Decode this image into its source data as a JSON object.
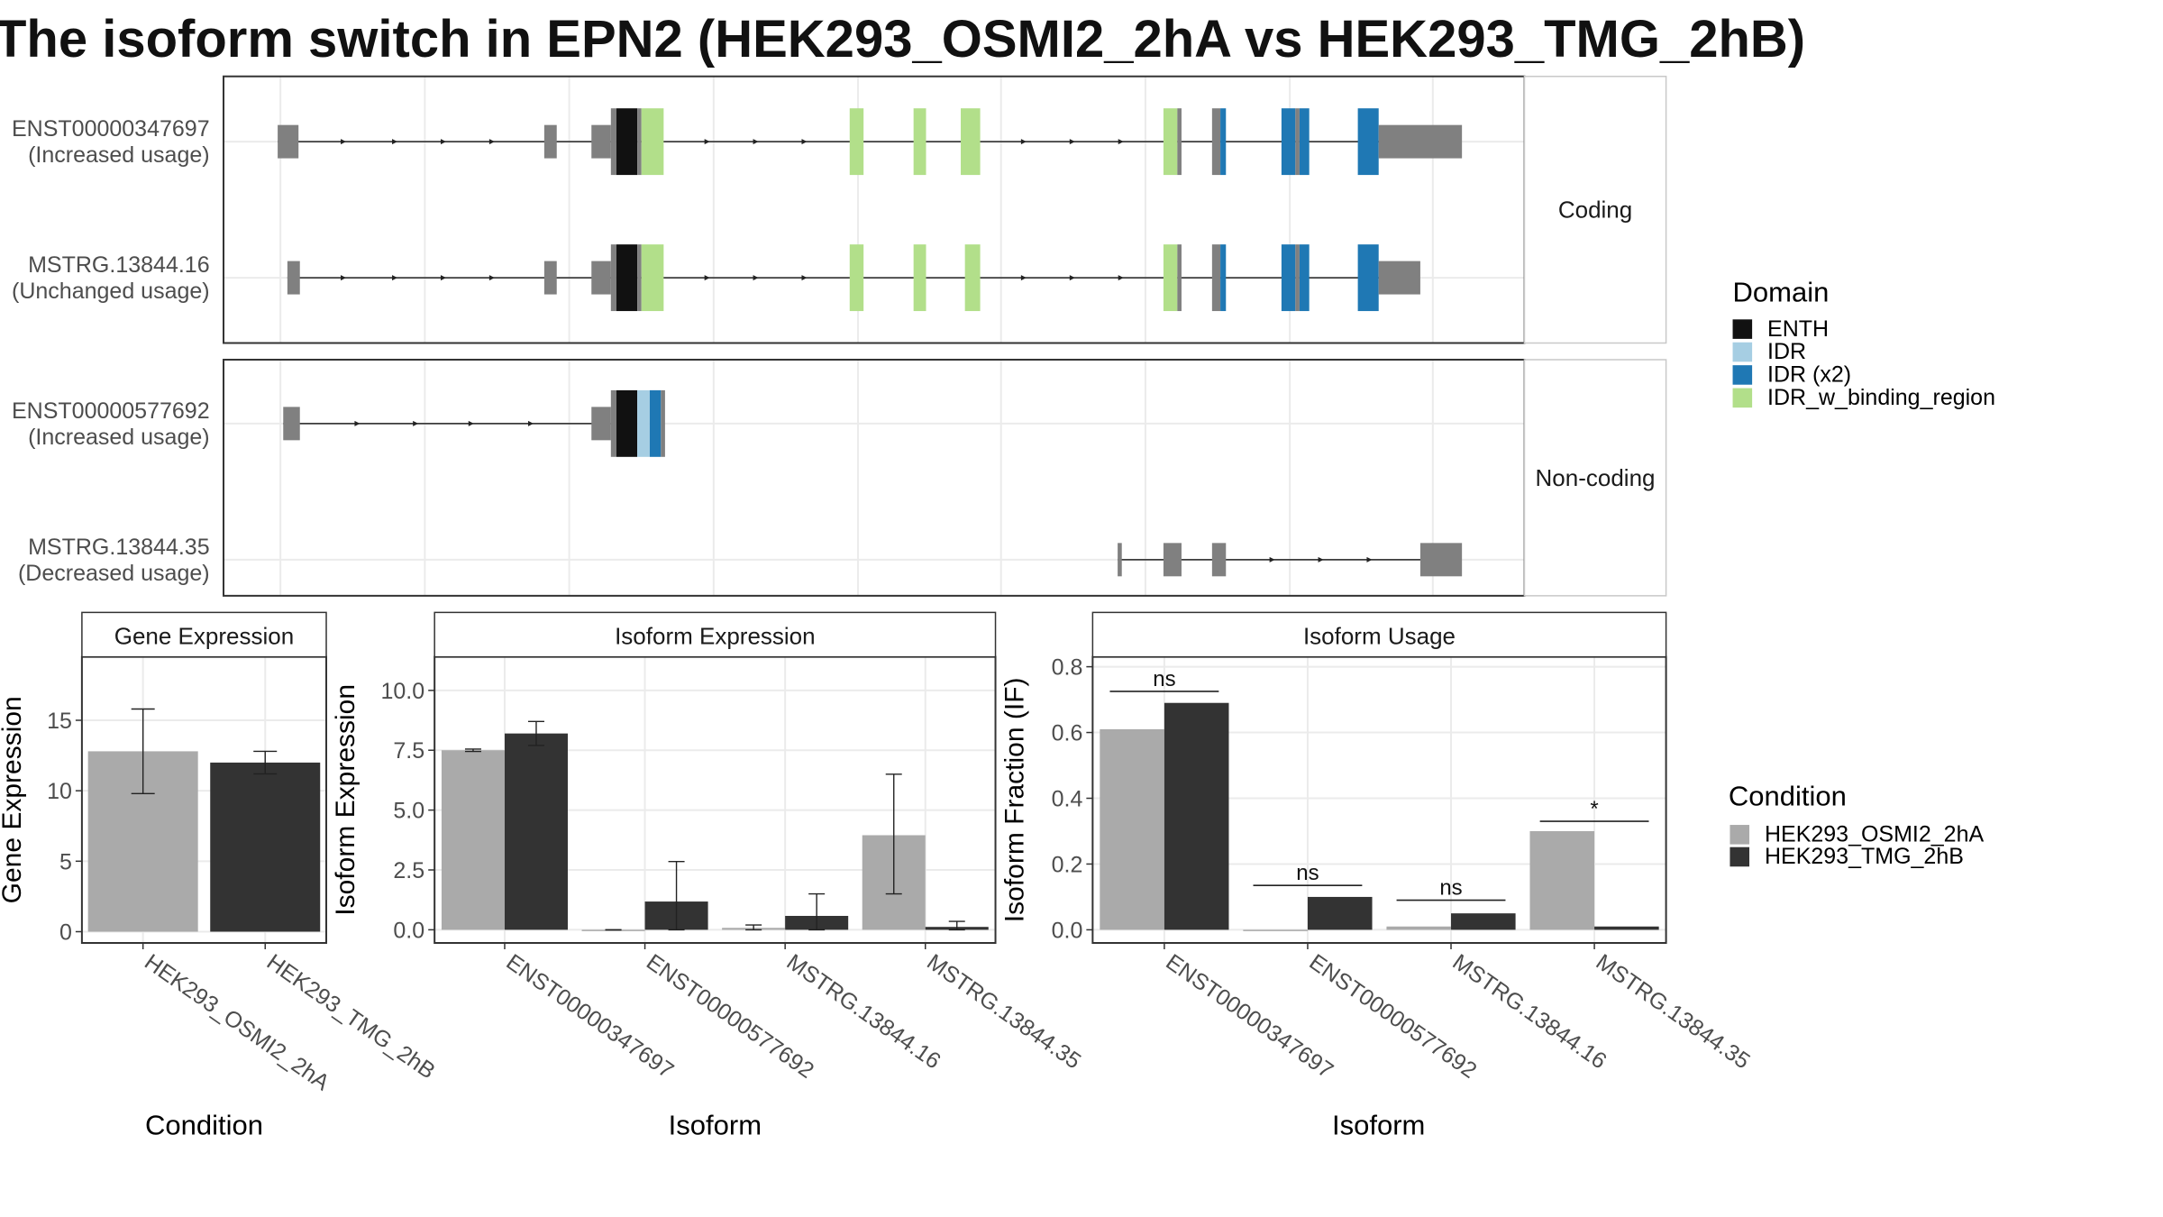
{
  "title": "The isoform switch in EPN2 (HEK293_OSMI2_2hA vs HEK293_TMG_2hB)",
  "colors": {
    "ENTH": "#111111",
    "IDR": "#a6cee3",
    "IDR (x2)": "#1f78b4",
    "IDR_w_binding_region": "#b2df8a",
    "exon": "#808080",
    "HEK293_OSMI2_2hA": "#aaaaaa",
    "HEK293_TMG_2hB": "#333333"
  },
  "structure": {
    "panels": [
      {
        "strip": "Coding",
        "transcripts": [
          {
            "name": "ENST00000347697",
            "usage": "(Increased usage)",
            "intron": [
              200,
              1000
            ],
            "arrows": [
              248,
              285,
              320,
              355,
              510,
              545,
              580,
              738,
              773,
              808
            ],
            "segs": [
              [
                200,
                215,
                0.4,
                "exon"
              ],
              [
                392,
                401,
                0.4,
                "exon"
              ],
              [
                426,
                440,
                0.4,
                "exon"
              ],
              [
                440,
                444,
                0.8,
                "exon"
              ],
              [
                444,
                459,
                0.8,
                "ENTH"
              ],
              [
                459,
                462,
                0.8,
                "exon"
              ],
              [
                462,
                478,
                0.8,
                "IDR_w_binding_region"
              ],
              [
                612,
                622,
                0.8,
                "IDR_w_binding_region"
              ],
              [
                658,
                667,
                0.8,
                "IDR_w_binding_region"
              ],
              [
                692,
                706,
                0.8,
                "IDR_w_binding_region"
              ],
              [
                838,
                848,
                0.8,
                "IDR_w_binding_region"
              ],
              [
                848,
                851,
                0.8,
                "exon"
              ],
              [
                873,
                879,
                0.8,
                "exon"
              ],
              [
                879,
                883,
                0.8,
                "IDR (x2)"
              ],
              [
                923,
                933,
                0.8,
                "IDR (x2)"
              ],
              [
                933,
                936,
                0.8,
                "exon"
              ],
              [
                936,
                943,
                0.8,
                "IDR (x2)"
              ],
              [
                978,
                993,
                0.8,
                "IDR (x2)"
              ],
              [
                993,
                1053,
                0.4,
                "exon"
              ]
            ]
          },
          {
            "name": "MSTRG.13844.16",
            "usage": "(Unchanged usage)",
            "intron": [
              207,
              995
            ],
            "arrows": [
              248,
              285,
              320,
              355,
              510,
              545,
              580,
              738,
              773,
              808
            ],
            "segs": [
              [
                207,
                216,
                0.4,
                "exon"
              ],
              [
                392,
                401,
                0.4,
                "exon"
              ],
              [
                426,
                440,
                0.4,
                "exon"
              ],
              [
                440,
                444,
                0.8,
                "exon"
              ],
              [
                444,
                459,
                0.8,
                "ENTH"
              ],
              [
                459,
                462,
                0.8,
                "exon"
              ],
              [
                462,
                478,
                0.8,
                "IDR_w_binding_region"
              ],
              [
                612,
                622,
                0.8,
                "IDR_w_binding_region"
              ],
              [
                658,
                667,
                0.8,
                "IDR_w_binding_region"
              ],
              [
                695,
                706,
                0.8,
                "IDR_w_binding_region"
              ],
              [
                838,
                848,
                0.8,
                "IDR_w_binding_region"
              ],
              [
                848,
                851,
                0.8,
                "exon"
              ],
              [
                873,
                879,
                0.8,
                "exon"
              ],
              [
                879,
                883,
                0.8,
                "IDR (x2)"
              ],
              [
                923,
                933,
                0.8,
                "IDR (x2)"
              ],
              [
                933,
                936,
                0.8,
                "exon"
              ],
              [
                936,
                943,
                0.8,
                "IDR (x2)"
              ],
              [
                978,
                993,
                0.8,
                "IDR (x2)"
              ],
              [
                993,
                1023,
                0.4,
                "exon"
              ]
            ]
          }
        ]
      },
      {
        "strip": "Non-coding",
        "transcripts": [
          {
            "name": "ENST00000577692",
            "usage": "(Increased usage)",
            "intron": [
              204,
              440
            ],
            "arrows": [
              258,
              300,
              340,
              383
            ],
            "segs": [
              [
                204,
                216,
                0.4,
                "exon"
              ],
              [
                426,
                440,
                0.4,
                "exon"
              ],
              [
                440,
                444,
                0.8,
                "exon"
              ],
              [
                444,
                459,
                0.8,
                "ENTH"
              ],
              [
                459,
                468,
                0.8,
                "IDR"
              ],
              [
                468,
                476,
                0.8,
                "IDR (x2)"
              ],
              [
                476,
                479,
                0.8,
                "exon"
              ]
            ]
          },
          {
            "name": "MSTRG.13844.35",
            "usage": "(Decreased usage)",
            "intron": [
              805,
              1025
            ],
            "arrows": [
              917,
              952,
              987
            ],
            "segs": [
              [
                805,
                808,
                0.4,
                "exon"
              ],
              [
                838,
                851,
                0.4,
                "exon"
              ],
              [
                873,
                883,
                0.4,
                "exon"
              ],
              [
                1023,
                1053,
                0.4,
                "exon"
              ]
            ]
          }
        ]
      }
    ],
    "domain_legend": {
      "title": "Domain",
      "items": [
        "ENTH",
        "IDR",
        "IDR (x2)",
        "IDR_w_binding_region"
      ]
    }
  },
  "chart_data": [
    {
      "type": "bar",
      "title": "Gene Expression",
      "xlabel": "Condition",
      "ylabel": "Gene Expression",
      "ylim": [
        -0.8,
        19.5
      ],
      "yticks": [
        0,
        5,
        10,
        15
      ],
      "categories": [
        "HEK293_OSMI2_2hA",
        "HEK293_TMG_2hB"
      ],
      "series": [
        {
          "name": "HEK293_OSMI2_2hA",
          "values": [
            12.8,
            null
          ]
        },
        {
          "name": "HEK293_TMG_2hB",
          "values": [
            null,
            12.0
          ]
        }
      ],
      "errors": [
        [
          9.8,
          15.8
        ],
        [
          11.2,
          12.8
        ]
      ]
    },
    {
      "type": "bar",
      "title": "Isoform Expression",
      "xlabel": "Isoform",
      "ylabel": "Isoform Expression",
      "ylim": [
        -0.55,
        11.4
      ],
      "yticks": [
        "0.0",
        "2.5",
        "5.0",
        "7.5",
        "10.0"
      ],
      "categories": [
        "ENST00000347697",
        "ENST00000577692",
        "MSTRG.13844.16",
        "MSTRG.13844.35"
      ],
      "series": [
        {
          "name": "HEK293_OSMI2_2hA",
          "values": [
            7.5,
            0.0,
            0.08,
            3.95
          ],
          "errors": [
            [
              7.45,
              7.55
            ],
            [
              0.0,
              0.0
            ],
            [
              0.0,
              0.2
            ],
            [
              1.5,
              6.5
            ]
          ]
        },
        {
          "name": "HEK293_TMG_2hB",
          "values": [
            8.2,
            1.18,
            0.58,
            0.12
          ],
          "errors": [
            [
              7.7,
              8.7
            ],
            [
              0.0,
              2.85
            ],
            [
              0.0,
              1.5
            ],
            [
              0.0,
              0.35
            ]
          ]
        }
      ]
    },
    {
      "type": "bar",
      "title": "Isoform Usage",
      "xlabel": "Isoform",
      "ylabel": "Isoform Fraction (IF)",
      "ylim": [
        -0.04,
        0.83
      ],
      "yticks": [
        "0.0",
        "0.2",
        "0.4",
        "0.6",
        "0.8"
      ],
      "categories": [
        "ENST00000347697",
        "ENST00000577692",
        "MSTRG.13844.16",
        "MSTRG.13844.35"
      ],
      "series": [
        {
          "name": "HEK293_OSMI2_2hA",
          "values": [
            0.61,
            0.0,
            0.01,
            0.3
          ]
        },
        {
          "name": "HEK293_TMG_2hB",
          "values": [
            0.69,
            0.1,
            0.05,
            0.01
          ]
        }
      ],
      "significance": [
        {
          "label": "ns",
          "y": 0.725
        },
        {
          "label": "ns",
          "y": 0.135
        },
        {
          "label": "ns",
          "y": 0.09
        },
        {
          "label": "*",
          "y": 0.33
        }
      ]
    }
  ],
  "condition_legend": {
    "title": "Condition",
    "items": [
      "HEK293_OSMI2_2hA",
      "HEK293_TMG_2hB"
    ]
  }
}
